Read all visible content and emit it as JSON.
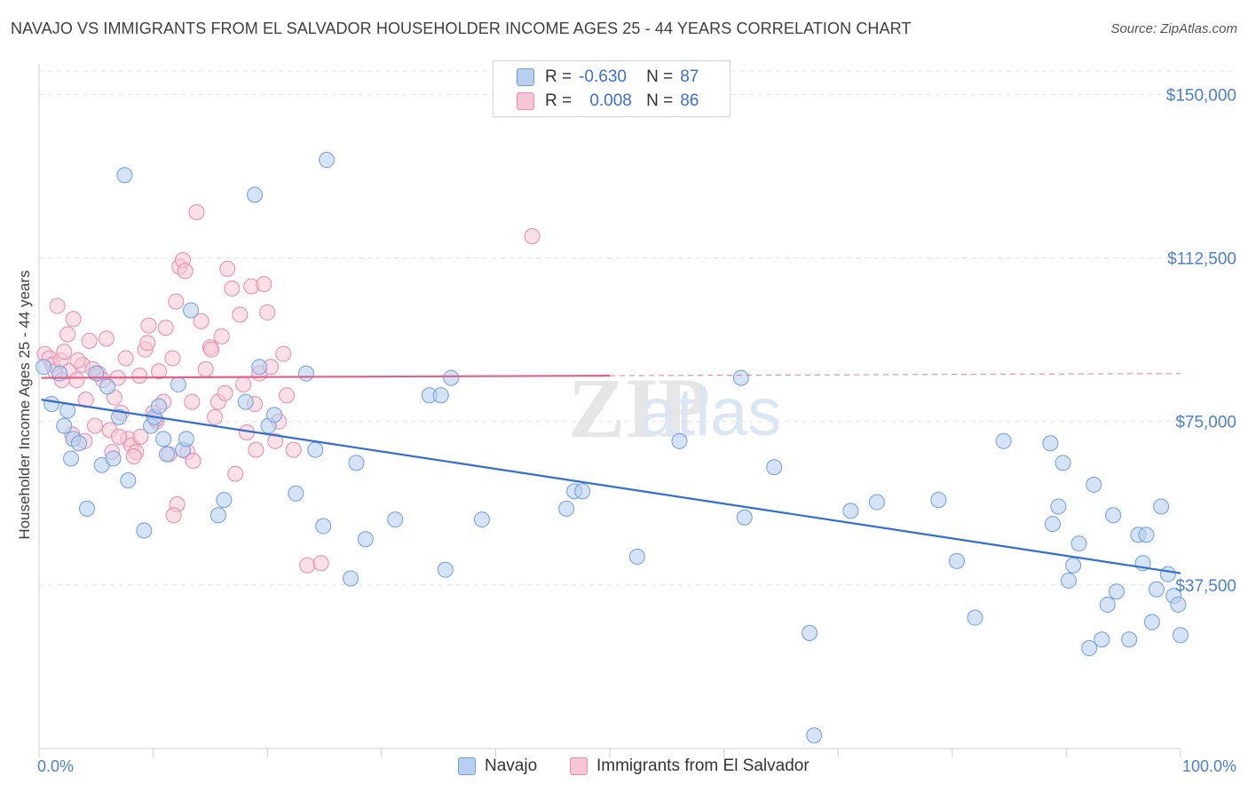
{
  "title": "NAVAJO VS IMMIGRANTS FROM EL SALVADOR HOUSEHOLDER INCOME AGES 25 - 44 YEARS CORRELATION CHART",
  "source": "Source: ZipAtlas.com",
  "watermark": {
    "zip": "ZIP",
    "atlas": "atlas"
  },
  "legend": {
    "series1": {
      "r_label": "R =",
      "r_value": "-0.630",
      "n_label": "N =",
      "n_value": "87"
    },
    "series2": {
      "r_label": "R =",
      "r_value": "0.008",
      "n_label": "N =",
      "n_value": "86"
    }
  },
  "bottom_legend": {
    "navajo": "Navajo",
    "salvador": "Immigrants from El Salvador"
  },
  "colors": {
    "navajo_fill": "#b8d0f0",
    "navajo_stroke": "#6f9de0",
    "navajo_line": "#2f6fd1",
    "salvador_fill": "#f7c6d6",
    "salvador_stroke": "#e88aaa",
    "salvador_line": "#e0608a"
  },
  "chart_data": {
    "type": "scatter",
    "title": "NAVAJO VS IMMIGRANTS FROM EL SALVADOR HOUSEHOLDER INCOME AGES 25 - 44 YEARS CORRELATION CHART",
    "xlabel": "",
    "ylabel": "Householder Income Ages 25 - 44 years",
    "xlim": [
      0,
      100
    ],
    "ylim": [
      0,
      157000
    ],
    "x_tick_labels": [
      "0.0%",
      "100.0%"
    ],
    "y_ticks": [
      37500,
      75000,
      112500,
      150000
    ],
    "y_tick_labels": [
      "$37,500",
      "$75,000",
      "$112,500",
      "$150,000"
    ],
    "series": [
      {
        "name": "Navajo",
        "r": -0.63,
        "n": 87,
        "trend": {
          "x0": 0.2,
          "y0": 80000,
          "x1": 100,
          "y1": 40200
        },
        "points": [
          [
            0.4,
            87500
          ],
          [
            1.1,
            79000
          ],
          [
            1.8,
            86000
          ],
          [
            2.2,
            74000
          ],
          [
            2.5,
            77500
          ],
          [
            2.8,
            66500
          ],
          [
            3.0,
            71000
          ],
          [
            3.5,
            70000
          ],
          [
            4.2,
            55000
          ],
          [
            5.0,
            86000
          ],
          [
            5.5,
            65000
          ],
          [
            6.0,
            83000
          ],
          [
            6.5,
            66500
          ],
          [
            7.0,
            76000
          ],
          [
            7.5,
            131500
          ],
          [
            7.8,
            61500
          ],
          [
            9.2,
            50000
          ],
          [
            9.8,
            74000
          ],
          [
            10.1,
            76000
          ],
          [
            10.5,
            78500
          ],
          [
            10.9,
            71000
          ],
          [
            11.2,
            67500
          ],
          [
            12.2,
            83500
          ],
          [
            12.6,
            68500
          ],
          [
            12.9,
            71000
          ],
          [
            13.3,
            100500
          ],
          [
            15.7,
            53500
          ],
          [
            16.2,
            57000
          ],
          [
            18.1,
            79500
          ],
          [
            18.9,
            127000
          ],
          [
            19.3,
            87500
          ],
          [
            20.1,
            74000
          ],
          [
            20.6,
            76500
          ],
          [
            22.5,
            58500
          ],
          [
            23.4,
            86000
          ],
          [
            24.2,
            68500
          ],
          [
            24.9,
            51000
          ],
          [
            25.2,
            135000
          ],
          [
            27.3,
            39000
          ],
          [
            27.8,
            65500
          ],
          [
            28.6,
            48000
          ],
          [
            31.2,
            52500
          ],
          [
            34.2,
            81000
          ],
          [
            35.2,
            81000
          ],
          [
            35.6,
            41000
          ],
          [
            36.1,
            85000
          ],
          [
            38.8,
            52500
          ],
          [
            46.2,
            55000
          ],
          [
            46.9,
            59000
          ],
          [
            47.6,
            59000
          ],
          [
            52.4,
            44000
          ],
          [
            56.1,
            70500
          ],
          [
            61.5,
            85000
          ],
          [
            61.8,
            53000
          ],
          [
            64.4,
            64500
          ],
          [
            67.5,
            26500
          ],
          [
            67.9,
            3000
          ],
          [
            71.1,
            54500
          ],
          [
            73.4,
            56500
          ],
          [
            78.8,
            57000
          ],
          [
            80.4,
            43000
          ],
          [
            82.0,
            30000
          ],
          [
            84.5,
            70500
          ],
          [
            88.6,
            70000
          ],
          [
            88.8,
            51500
          ],
          [
            89.3,
            55500
          ],
          [
            89.7,
            65500
          ],
          [
            90.2,
            38500
          ],
          [
            90.6,
            42000
          ],
          [
            91.1,
            47000
          ],
          [
            92.4,
            60500
          ],
          [
            93.1,
            25000
          ],
          [
            93.6,
            33000
          ],
          [
            94.1,
            53500
          ],
          [
            94.4,
            36000
          ],
          [
            95.5,
            25000
          ],
          [
            96.3,
            49000
          ],
          [
            96.7,
            42500
          ],
          [
            97.0,
            49000
          ],
          [
            97.5,
            29000
          ],
          [
            97.9,
            36500
          ],
          [
            98.3,
            55500
          ],
          [
            98.9,
            40000
          ],
          [
            99.4,
            35000
          ],
          [
            99.8,
            33000
          ],
          [
            100.0,
            26000
          ],
          [
            92.0,
            23000
          ]
        ]
      },
      {
        "name": "Immigrants from El Salvador",
        "r": 0.008,
        "n": 86,
        "trend": {
          "x0": 0.2,
          "y0": 85000,
          "x1": 50,
          "y1": 85500,
          "dash_x1": 100,
          "dash_y1": 86000
        },
        "points": [
          [
            0.5,
            90500
          ],
          [
            0.9,
            89500
          ],
          [
            1.2,
            88000
          ],
          [
            1.4,
            86500
          ],
          [
            1.9,
            89000
          ],
          [
            1.6,
            101500
          ],
          [
            2.2,
            91000
          ],
          [
            2.6,
            86500
          ],
          [
            2.5,
            95000
          ],
          [
            3.0,
            98500
          ],
          [
            3.3,
            84500
          ],
          [
            3.8,
            88000
          ],
          [
            4.1,
            80000
          ],
          [
            4.4,
            93500
          ],
          [
            4.7,
            87000
          ],
          [
            5.2,
            86000
          ],
          [
            5.6,
            84500
          ],
          [
            5.9,
            94000
          ],
          [
            6.2,
            73000
          ],
          [
            6.6,
            80500
          ],
          [
            6.9,
            85000
          ],
          [
            7.2,
            77000
          ],
          [
            7.6,
            89500
          ],
          [
            7.8,
            71000
          ],
          [
            8.1,
            69500
          ],
          [
            8.5,
            68000
          ],
          [
            8.8,
            85500
          ],
          [
            8.9,
            71500
          ],
          [
            9.3,
            91500
          ],
          [
            9.6,
            97000
          ],
          [
            10.0,
            77000
          ],
          [
            10.3,
            75000
          ],
          [
            10.5,
            86500
          ],
          [
            10.9,
            79500
          ],
          [
            11.1,
            96500
          ],
          [
            11.4,
            67500
          ],
          [
            11.7,
            89500
          ],
          [
            12.0,
            102500
          ],
          [
            12.3,
            110500
          ],
          [
            12.6,
            112000
          ],
          [
            12.8,
            109500
          ],
          [
            13.0,
            68000
          ],
          [
            13.4,
            79500
          ],
          [
            13.8,
            123000
          ],
          [
            14.2,
            98000
          ],
          [
            14.6,
            87000
          ],
          [
            15.0,
            92000
          ],
          [
            15.4,
            76000
          ],
          [
            15.7,
            79500
          ],
          [
            16.0,
            94500
          ],
          [
            16.5,
            110000
          ],
          [
            16.9,
            105500
          ],
          [
            17.2,
            63000
          ],
          [
            17.6,
            99500
          ],
          [
            17.9,
            83500
          ],
          [
            18.2,
            72500
          ],
          [
            18.6,
            106000
          ],
          [
            18.9,
            79000
          ],
          [
            19.3,
            86000
          ],
          [
            19.7,
            106500
          ],
          [
            20.0,
            100000
          ],
          [
            20.3,
            87500
          ],
          [
            20.7,
            70500
          ],
          [
            21.0,
            75000
          ],
          [
            21.4,
            90500
          ],
          [
            21.7,
            81000
          ],
          [
            22.3,
            68500
          ],
          [
            23.5,
            42000
          ],
          [
            24.7,
            42500
          ],
          [
            43.2,
            117500
          ],
          [
            3.4,
            89000
          ],
          [
            9.5,
            93000
          ],
          [
            10.2,
            75500
          ],
          [
            8.3,
            67000
          ],
          [
            7.0,
            71500
          ],
          [
            6.4,
            68000
          ],
          [
            4.9,
            74000
          ],
          [
            4.0,
            70500
          ],
          [
            2.9,
            72000
          ],
          [
            12.1,
            56000
          ],
          [
            11.8,
            53500
          ],
          [
            13.5,
            66000
          ],
          [
            15.1,
            91500
          ],
          [
            16.3,
            81500
          ],
          [
            19.0,
            68500
          ],
          [
            2.0,
            84500
          ]
        ]
      }
    ]
  }
}
